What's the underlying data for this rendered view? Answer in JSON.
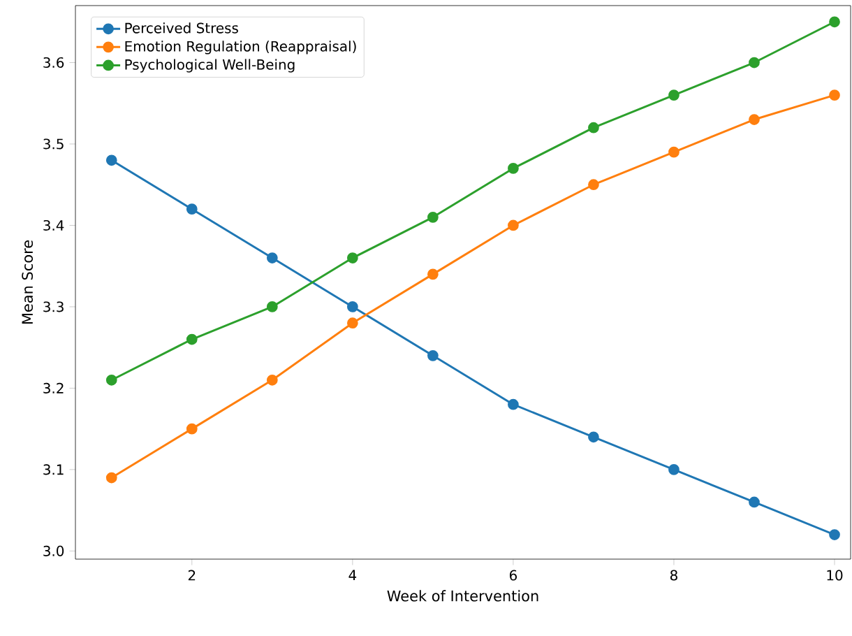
{
  "chart_data": {
    "type": "line",
    "xlabel": "Week of Intervention",
    "ylabel": "Mean Score",
    "x": [
      1,
      2,
      3,
      4,
      5,
      6,
      7,
      8,
      9,
      10
    ],
    "series": [
      {
        "name": "Perceived Stress",
        "color": "#1f77b4",
        "values": [
          3.48,
          3.42,
          3.36,
          3.3,
          3.24,
          3.18,
          3.14,
          3.1,
          3.06,
          3.02
        ]
      },
      {
        "name": "Emotion Regulation (Reappraisal)",
        "color": "#ff7f0e",
        "values": [
          3.09,
          3.15,
          3.21,
          3.28,
          3.34,
          3.4,
          3.45,
          3.49,
          3.53,
          3.56
        ]
      },
      {
        "name": "Psychological Well-Being",
        "color": "#2ca02c",
        "values": [
          3.21,
          3.26,
          3.3,
          3.36,
          3.41,
          3.47,
          3.52,
          3.56,
          3.6,
          3.65
        ]
      }
    ],
    "xlim": [
      0.55,
      10.2
    ],
    "ylim": [
      2.99,
      3.67
    ],
    "xticks": [
      2,
      4,
      6,
      8,
      10
    ],
    "yticks": [
      {
        "value": 3.0,
        "label": "3.0"
      },
      {
        "value": 3.1,
        "label": "3.1"
      },
      {
        "value": 3.2,
        "label": "3.2"
      },
      {
        "value": 3.3,
        "label": "3.3"
      },
      {
        "value": 3.4,
        "label": "3.4"
      },
      {
        "value": 3.5,
        "label": "3.5"
      },
      {
        "value": 3.6,
        "label": "3.6"
      }
    ],
    "legend": "top left",
    "marker": "circle",
    "line_style": "solid",
    "grid": false
  }
}
